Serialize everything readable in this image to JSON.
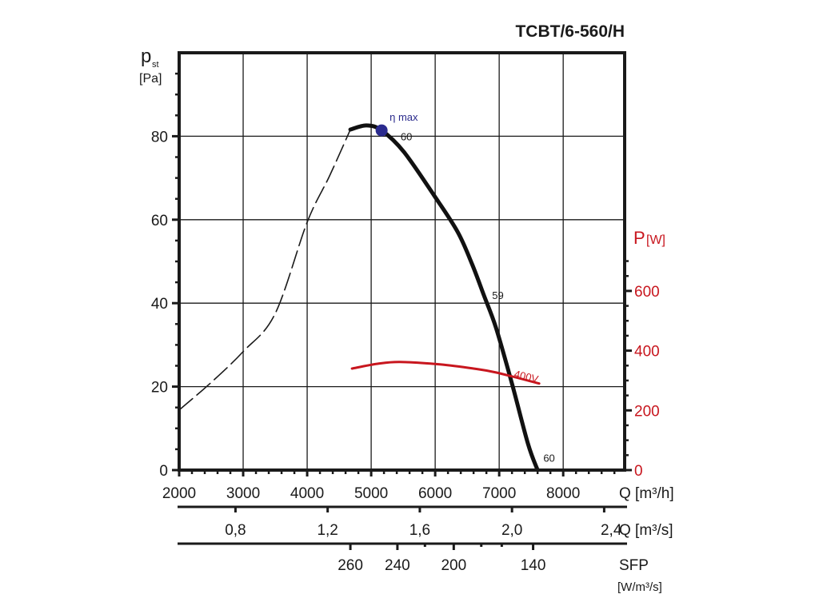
{
  "chart_data": {
    "type": "line",
    "title": "TCBT/6-560/H",
    "ylabel": {
      "main": "p",
      "sub": "st",
      "unit": "[Pa]"
    },
    "y2label": {
      "main": "P",
      "unit": "[W]"
    },
    "xlabel": "Q [m³/h]",
    "xlabel2": "Q [m³/s]",
    "xlabel3": {
      "main": "SFP",
      "unit": "[W/m³/s]"
    },
    "xlim": [
      2000,
      8960
    ],
    "ylim": [
      0,
      100
    ],
    "y2lim": [
      0,
      700
    ],
    "grid": true,
    "x_ticks": [
      "2000",
      "3000",
      "4000",
      "5000",
      "6000",
      "7000",
      "8000"
    ],
    "y_ticks": [
      "0",
      "20",
      "40",
      "60",
      "80"
    ],
    "y2_ticks": [
      "0",
      "200",
      "400",
      "600"
    ],
    "x2_ticks": [
      {
        "label": "0,8",
        "value_m3h": 2880
      },
      {
        "label": "1,2",
        "value_m3h": 4320
      },
      {
        "label": "1,6",
        "value_m3h": 5760
      },
      {
        "label": "2,0",
        "value_m3h": 7200
      },
      {
        "label": "2,4",
        "value_m3h": 8640
      }
    ],
    "x3_ticks": [
      {
        "label": "260",
        "value_m3h": 4675
      },
      {
        "label": "240",
        "value_m3h": 5410
      },
      {
        "label": "",
        "value_m3h": 5840
      },
      {
        "label": "200",
        "value_m3h": 6290
      },
      {
        "label": "",
        "value_m3h": 6720
      },
      {
        "label": "",
        "value_m3h": 7040
      },
      {
        "label": "140",
        "value_m3h": 7530
      }
    ],
    "series": [
      {
        "name": "pressure-unstable",
        "style": "dashed",
        "color": "#1a1a1a",
        "x": [
          2000,
          2500,
          3000,
          3500,
          4000,
          4350,
          4675
        ],
        "y": [
          14.4,
          21.0,
          28.4,
          37.5,
          59.4,
          70.5,
          81.6
        ]
      },
      {
        "name": "pressure",
        "style": "solid",
        "color": "#111111",
        "x": [
          4675,
          4925,
          5163,
          5513,
          5988,
          6350,
          6575,
          6763,
          6950,
          7200,
          7450,
          7600
        ],
        "y": [
          81.6,
          82.6,
          81.4,
          76.2,
          65.7,
          57.1,
          49.4,
          41.8,
          34.1,
          20.7,
          6.3,
          0
        ]
      },
      {
        "name": "power-400V",
        "axis": "y2",
        "color": "#c8161e",
        "label": "400V",
        "x": [
          4700,
          5100,
          5450,
          6075,
          6600,
          6950,
          7625
        ],
        "y": [
          340,
          356,
          362,
          354,
          340,
          327,
          290
        ]
      }
    ],
    "annotations": [
      {
        "text": "η max",
        "x": 5163,
        "y": 81.4,
        "type": "marker",
        "color": "#2a2a8c"
      },
      {
        "text": "60",
        "x": 5550,
        "y": 80
      },
      {
        "text": "59",
        "x": 6980,
        "y": 42
      },
      {
        "text": "60",
        "x": 7780,
        "y": 3
      }
    ]
  }
}
